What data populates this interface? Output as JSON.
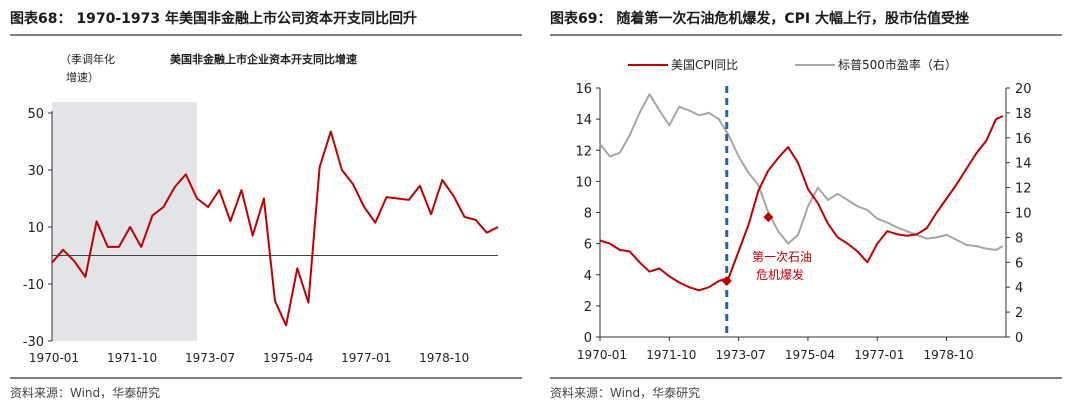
{
  "left": {
    "figure_title": "图表68： 1970-1973 年美国非金融上市公司资本开支同比回升",
    "source": "资料来源：Wind，华泰研究",
    "chart_data": {
      "type": "line",
      "title": "美国非金融上市企业资本开支同比增速",
      "ylabel_line1": "（季调年化",
      "ylabel_line2": "增速）",
      "ylim": [
        -30,
        50
      ],
      "yticks": [
        50,
        30,
        10,
        -10,
        -30
      ],
      "xticks": [
        "1970-01",
        "1971-10",
        "1973-07",
        "1975-04",
        "1977-01",
        "1978-10"
      ],
      "xtick_t": [
        1970.0,
        1971.75,
        1973.5,
        1975.25,
        1977.0,
        1978.75
      ],
      "xlim": [
        1970.0,
        1980.0
      ],
      "zero_line": 0,
      "shaded_range": [
        1970.0,
        1973.25
      ],
      "series": [
        {
          "color": "#c00000",
          "x": [
            1970.0,
            1970.25,
            1970.5,
            1970.75,
            1971.0,
            1971.25,
            1971.5,
            1971.75,
            1972.0,
            1972.25,
            1972.5,
            1972.75,
            1973.0,
            1973.25,
            1973.5,
            1973.75,
            1974.0,
            1974.25,
            1974.5,
            1974.75,
            1975.0,
            1975.25,
            1975.5,
            1975.75,
            1976.0,
            1976.25,
            1976.5,
            1976.75,
            1977.0,
            1977.25,
            1977.5,
            1977.75,
            1978.0,
            1978.25,
            1978.5,
            1978.75,
            1979.0,
            1979.25,
            1979.5,
            1979.75,
            1980.0
          ],
          "y": [
            -2.5,
            2,
            -2,
            -7.5,
            12,
            3,
            3,
            10,
            3,
            14,
            17,
            24,
            28.5,
            20,
            17,
            23,
            12,
            23,
            7,
            20,
            -16,
            -24.5,
            -4.5,
            -16.5,
            31,
            43.5,
            30,
            25,
            17,
            11.5,
            20.5,
            20,
            19.5,
            24.5,
            14.5,
            26.5,
            21,
            13.5,
            12.5,
            8,
            10
          ]
        }
      ]
    }
  },
  "right": {
    "figure_title": "图表69： 随着第一次石油危机爆发，CPI 大幅上行，股市估值受挫",
    "source": "资料来源：Wind，华泰研究",
    "chart_data": {
      "type": "line",
      "legend": [
        "美国CPI同比",
        "标普500市盈率（右）"
      ],
      "legend_placement": "top",
      "ylim_left": [
        0,
        16
      ],
      "yticks_left": [
        0,
        2,
        4,
        6,
        8,
        10,
        12,
        14,
        16
      ],
      "ylim_right": [
        0,
        20
      ],
      "yticks_right": [
        0,
        2,
        4,
        6,
        8,
        10,
        12,
        14,
        16,
        18,
        20
      ],
      "xticks": [
        "1970-01",
        "1971-10",
        "1973-07",
        "1975-04",
        "1977-01",
        "1978-10"
      ],
      "xtick_t": [
        1970.0,
        1971.75,
        1973.5,
        1975.25,
        1977.0,
        1978.75
      ],
      "xlim": [
        1970.0,
        1980.25
      ],
      "event_line_x": 1973.2,
      "annotation_line1": "第一次石油",
      "annotation_line2": "危机爆发",
      "markers": [
        {
          "x": 1973.2,
          "y": 3.6
        },
        {
          "x": 1974.25,
          "y": 7.7
        }
      ],
      "series": [
        {
          "name": "美国CPI同比",
          "axis": "left",
          "color": "#c00000",
          "x": [
            1970.0,
            1970.25,
            1970.5,
            1970.75,
            1971.0,
            1971.25,
            1971.5,
            1971.75,
            1972.0,
            1972.25,
            1972.5,
            1972.75,
            1973.0,
            1973.25,
            1973.5,
            1973.75,
            1974.0,
            1974.25,
            1974.5,
            1974.75,
            1975.0,
            1975.25,
            1975.5,
            1975.75,
            1976.0,
            1976.25,
            1976.5,
            1976.75,
            1977.0,
            1977.25,
            1977.5,
            1977.75,
            1978.0,
            1978.25,
            1978.5,
            1978.75,
            1979.0,
            1979.25,
            1979.5,
            1979.75,
            1980.0,
            1980.17
          ],
          "y": [
            6.2,
            6.0,
            5.6,
            5.5,
            4.8,
            4.2,
            4.4,
            3.9,
            3.5,
            3.2,
            3.0,
            3.2,
            3.6,
            3.8,
            5.5,
            7.2,
            9.4,
            10.7,
            11.5,
            12.2,
            11.2,
            9.5,
            8.6,
            7.3,
            6.4,
            6.0,
            5.5,
            4.8,
            6.0,
            6.8,
            6.6,
            6.5,
            6.6,
            7.0,
            8.0,
            8.9,
            9.8,
            10.8,
            11.8,
            12.6,
            14.0,
            14.2
          ]
        },
        {
          "name": "标普500市盈率（右）",
          "axis": "right",
          "color": "#a6a6a6",
          "x": [
            1970.0,
            1970.25,
            1970.5,
            1970.75,
            1971.0,
            1971.25,
            1971.5,
            1971.75,
            1972.0,
            1972.25,
            1972.5,
            1972.75,
            1973.0,
            1973.25,
            1973.5,
            1973.75,
            1974.0,
            1974.25,
            1974.5,
            1974.75,
            1975.0,
            1975.25,
            1975.5,
            1975.75,
            1976.0,
            1976.25,
            1976.5,
            1976.75,
            1977.0,
            1977.25,
            1977.5,
            1977.75,
            1978.0,
            1978.25,
            1978.5,
            1978.75,
            1979.0,
            1979.25,
            1979.5,
            1979.75,
            1980.0,
            1980.17
          ],
          "y": [
            15.5,
            14.5,
            14.8,
            16.2,
            18.0,
            19.5,
            18.2,
            17.0,
            18.5,
            18.2,
            17.8,
            18.0,
            17.5,
            16.2,
            14.5,
            13.2,
            12.2,
            10.0,
            8.5,
            7.5,
            8.2,
            10.5,
            12.0,
            11.0,
            11.5,
            11.0,
            10.5,
            10.2,
            9.5,
            9.2,
            8.8,
            8.5,
            8.2,
            7.9,
            8.0,
            8.2,
            7.8,
            7.4,
            7.3,
            7.1,
            7.0,
            7.3
          ]
        }
      ]
    }
  }
}
